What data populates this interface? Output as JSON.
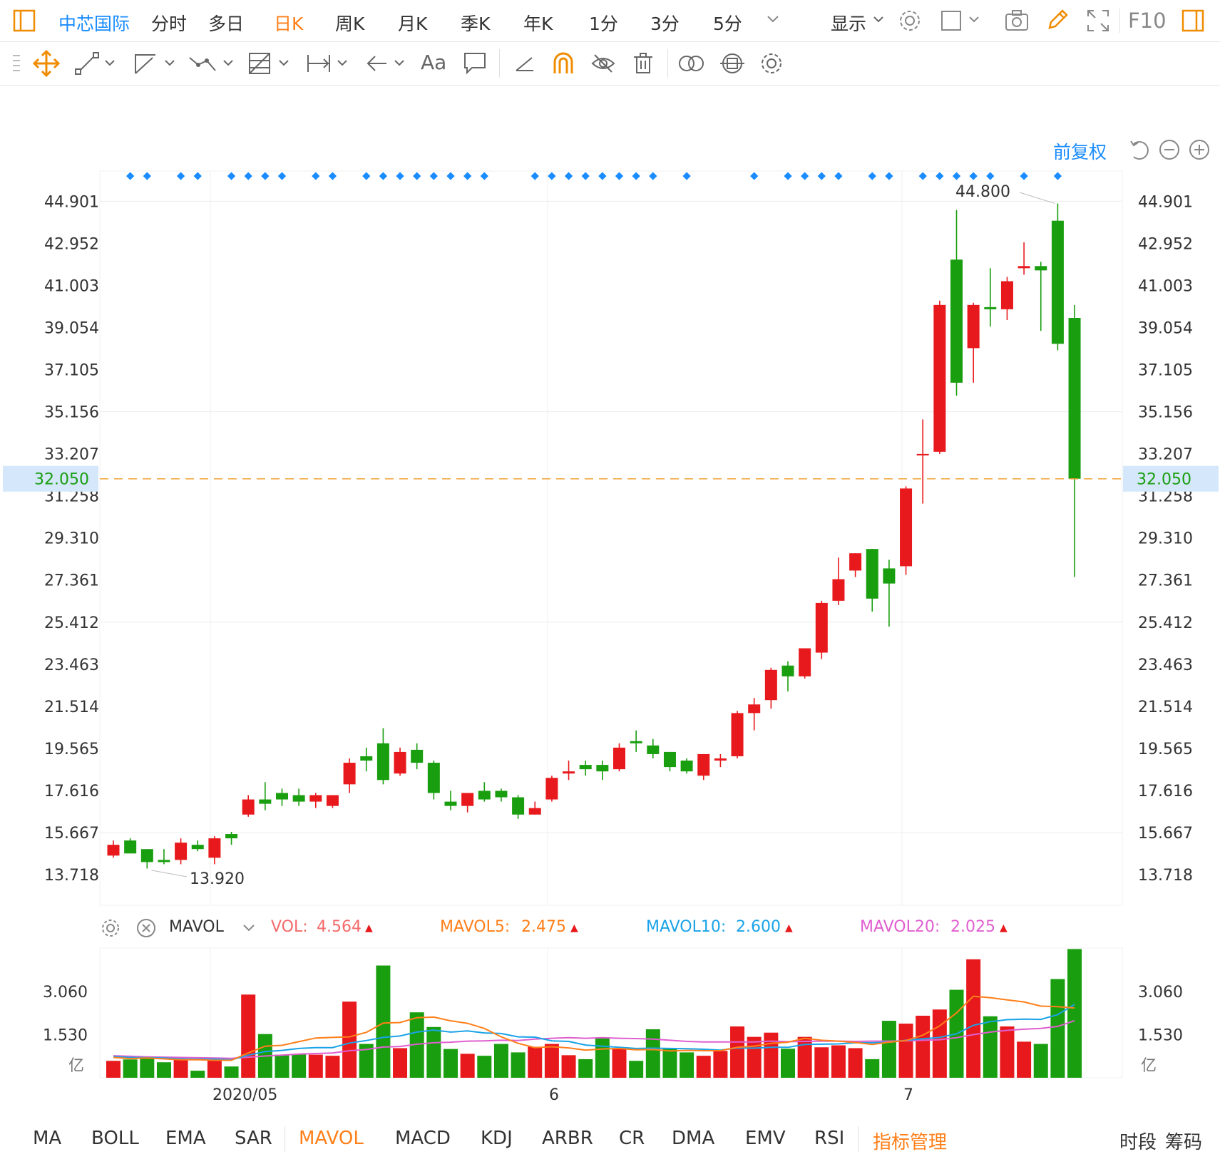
{
  "toolbar": {
    "stock_name": "中芯国际",
    "periods": [
      "分时",
      "多日",
      "日K",
      "周K",
      "月K",
      "季K",
      "年K",
      "1分",
      "3分",
      "5分"
    ],
    "active_period": "日K",
    "display_label": "显示",
    "f10_label": "F10"
  },
  "drawing_tools": {
    "text_tool_label": "Aa"
  },
  "chart_controls": {
    "adjust_label": "前复权"
  },
  "indicator_panel": {
    "name": "MAVOL",
    "vol_label": "VOL:",
    "vol_value": "4.564",
    "mavol5_label": "MAVOL5:",
    "mavol5_value": "2.475",
    "mavol10_label": "MAVOL10:",
    "mavol10_value": "2.600",
    "mavol20_label": "MAVOL20:",
    "mavol20_value": "2.025"
  },
  "bottom_tabs": {
    "indicators": [
      "MA",
      "BOLL",
      "EMA",
      "SAR",
      "MAVOL",
      "MACD",
      "KDJ",
      "ARBR",
      "CR",
      "DMA",
      "EMV",
      "RSI"
    ],
    "active": "MAVOL",
    "manage_label": "指标管理",
    "right_labels": [
      "时段",
      "筹码"
    ]
  },
  "colors": {
    "up": "#e8191c",
    "down": "#199e0f",
    "accent": "#1a8cff",
    "active_tab": "#ff7f1a",
    "mavol5": "#ff7f1a",
    "mavol10": "#1aa3e8",
    "mavol20": "#e05fd0",
    "vol": "#f46a6a",
    "current_price_line": "#f0a030"
  },
  "chart_data": [
    {
      "type": "candlestick",
      "y_ticks": [
        "44.901",
        "42.952",
        "41.003",
        "39.054",
        "37.105",
        "35.156",
        "33.207",
        "31.258",
        "29.310",
        "27.361",
        "25.412",
        "23.463",
        "21.514",
        "19.565",
        "17.616",
        "15.667",
        "13.718"
      ],
      "ylim": [
        12.3,
        46.3
      ],
      "x_tick_labels": [
        "2020/05",
        "6",
        "7"
      ],
      "x_tick_index": [
        6,
        26,
        47
      ],
      "current_price": "32.050",
      "max_label": "44.800",
      "min_label": "13.920",
      "signal_dot_index": [
        1,
        2,
        4,
        5,
        7,
        8,
        9,
        10,
        12,
        13,
        15,
        16,
        17,
        18,
        19,
        20,
        21,
        22,
        25,
        26,
        27,
        28,
        29,
        30,
        31,
        32,
        34,
        38,
        40,
        41,
        42,
        43,
        45,
        46,
        48,
        49,
        50,
        51,
        52,
        54,
        56
      ],
      "candles": [
        {
          "o": 14.6,
          "h": 15.3,
          "l": 14.5,
          "c": 15.1
        },
        {
          "o": 15.3,
          "h": 15.4,
          "l": 14.7,
          "c": 14.7
        },
        {
          "o": 14.9,
          "h": 14.9,
          "l": 14.0,
          "c": 14.3
        },
        {
          "o": 14.4,
          "h": 14.9,
          "l": 14.2,
          "c": 14.3
        },
        {
          "o": 14.4,
          "h": 15.4,
          "l": 14.2,
          "c": 15.2
        },
        {
          "o": 15.1,
          "h": 15.3,
          "l": 14.8,
          "c": 14.9
        },
        {
          "o": 14.5,
          "h": 15.5,
          "l": 14.2,
          "c": 15.4
        },
        {
          "o": 15.6,
          "h": 15.7,
          "l": 15.1,
          "c": 15.4
        },
        {
          "o": 16.5,
          "h": 17.4,
          "l": 16.4,
          "c": 17.2
        },
        {
          "o": 17.2,
          "h": 18.0,
          "l": 16.7,
          "c": 17.0
        },
        {
          "o": 17.5,
          "h": 17.7,
          "l": 16.9,
          "c": 17.2
        },
        {
          "o": 17.4,
          "h": 17.7,
          "l": 16.9,
          "c": 17.1
        },
        {
          "o": 17.1,
          "h": 17.5,
          "l": 16.8,
          "c": 17.4
        },
        {
          "o": 16.9,
          "h": 17.4,
          "l": 16.8,
          "c": 17.4
        },
        {
          "o": 17.9,
          "h": 19.1,
          "l": 17.5,
          "c": 18.9
        },
        {
          "o": 19.2,
          "h": 19.6,
          "l": 18.5,
          "c": 19.0
        },
        {
          "o": 19.8,
          "h": 20.5,
          "l": 17.9,
          "c": 18.1
        },
        {
          "o": 18.4,
          "h": 19.6,
          "l": 18.3,
          "c": 19.4
        },
        {
          "o": 19.5,
          "h": 19.8,
          "l": 18.6,
          "c": 18.9
        },
        {
          "o": 18.9,
          "h": 19.0,
          "l": 17.2,
          "c": 17.5
        },
        {
          "o": 17.1,
          "h": 17.6,
          "l": 16.7,
          "c": 16.9
        },
        {
          "o": 16.9,
          "h": 17.5,
          "l": 16.6,
          "c": 17.5
        },
        {
          "o": 17.6,
          "h": 18.0,
          "l": 17.1,
          "c": 17.2
        },
        {
          "o": 17.6,
          "h": 17.7,
          "l": 17.1,
          "c": 17.3
        },
        {
          "o": 17.3,
          "h": 17.4,
          "l": 16.3,
          "c": 16.5
        },
        {
          "o": 16.5,
          "h": 17.1,
          "l": 16.5,
          "c": 16.8
        },
        {
          "o": 17.2,
          "h": 18.3,
          "l": 17.1,
          "c": 18.2
        },
        {
          "o": 18.4,
          "h": 19.0,
          "l": 18.1,
          "c": 18.5
        },
        {
          "o": 18.8,
          "h": 19.0,
          "l": 18.3,
          "c": 18.6
        },
        {
          "o": 18.8,
          "h": 19.0,
          "l": 18.1,
          "c": 18.5
        },
        {
          "o": 18.6,
          "h": 19.8,
          "l": 18.5,
          "c": 19.6
        },
        {
          "o": 19.9,
          "h": 20.4,
          "l": 19.4,
          "c": 19.8
        },
        {
          "o": 19.7,
          "h": 20.0,
          "l": 19.1,
          "c": 19.3
        },
        {
          "o": 19.4,
          "h": 19.4,
          "l": 18.5,
          "c": 18.7
        },
        {
          "o": 19.0,
          "h": 19.1,
          "l": 18.4,
          "c": 18.5
        },
        {
          "o": 18.3,
          "h": 19.3,
          "l": 18.1,
          "c": 19.3
        },
        {
          "o": 19.0,
          "h": 19.3,
          "l": 18.7,
          "c": 19.1
        },
        {
          "o": 19.2,
          "h": 21.3,
          "l": 19.1,
          "c": 21.2
        },
        {
          "o": 21.2,
          "h": 21.9,
          "l": 20.4,
          "c": 21.6
        },
        {
          "o": 21.8,
          "h": 23.3,
          "l": 21.4,
          "c": 23.2
        },
        {
          "o": 23.4,
          "h": 23.6,
          "l": 22.2,
          "c": 22.9
        },
        {
          "o": 22.9,
          "h": 24.2,
          "l": 22.8,
          "c": 24.2
        },
        {
          "o": 24.0,
          "h": 26.4,
          "l": 23.7,
          "c": 26.3
        },
        {
          "o": 26.4,
          "h": 28.4,
          "l": 26.2,
          "c": 27.4
        },
        {
          "o": 27.8,
          "h": 28.6,
          "l": 27.5,
          "c": 28.6
        },
        {
          "o": 28.8,
          "h": 28.8,
          "l": 25.9,
          "c": 26.5
        },
        {
          "o": 27.9,
          "h": 28.3,
          "l": 25.2,
          "c": 27.2
        },
        {
          "o": 28.0,
          "h": 31.7,
          "l": 27.6,
          "c": 31.6
        },
        {
          "o": 33.2,
          "h": 34.8,
          "l": 30.9,
          "c": 33.2
        },
        {
          "o": 33.3,
          "h": 40.3,
          "l": 33.2,
          "c": 40.1
        },
        {
          "o": 42.2,
          "h": 44.5,
          "l": 35.9,
          "c": 36.5
        },
        {
          "o": 38.1,
          "h": 40.2,
          "l": 36.5,
          "c": 40.1
        },
        {
          "o": 40.0,
          "h": 41.8,
          "l": 39.1,
          "c": 39.9
        },
        {
          "o": 39.9,
          "h": 41.4,
          "l": 39.4,
          "c": 41.2
        },
        {
          "o": 41.8,
          "h": 43.0,
          "l": 41.5,
          "c": 41.9
        },
        {
          "o": 41.9,
          "h": 42.1,
          "l": 38.9,
          "c": 41.7
        },
        {
          "o": 44.0,
          "h": 44.8,
          "l": 38.0,
          "c": 38.3
        },
        {
          "o": 39.5,
          "h": 40.1,
          "l": 27.5,
          "c": 32.05
        }
      ]
    },
    {
      "type": "bar",
      "series_name": "MAVOL",
      "y_ticks": [
        "3.060",
        "1.530"
      ],
      "unit_label": "亿",
      "ylim": [
        0,
        4.6
      ],
      "volumes": [
        0.6,
        0.65,
        0.72,
        0.55,
        0.68,
        0.25,
        0.68,
        0.4,
        2.95,
        1.55,
        0.82,
        0.84,
        0.82,
        0.78,
        2.7,
        1.2,
        3.98,
        1.05,
        2.32,
        1.8,
        1.02,
        0.85,
        0.78,
        1.2,
        0.9,
        1.1,
        1.2,
        0.8,
        0.66,
        1.4,
        1.05,
        0.6,
        1.72,
        1.03,
        0.9,
        0.78,
        0.95,
        1.82,
        1.45,
        1.6,
        1.03,
        1.45,
        1.08,
        1.15,
        1.05,
        0.66,
        2.02,
        1.92,
        2.2,
        2.42,
        3.12,
        4.2,
        2.18,
        1.82,
        1.28,
        1.2,
        3.5,
        4.564
      ],
      "mavol5": [
        0.72,
        0.68,
        0.7,
        0.67,
        0.64,
        0.64,
        0.62,
        0.62,
        0.88,
        1.12,
        1.15,
        1.28,
        1.41,
        1.43,
        1.45,
        1.61,
        1.94,
        1.96,
        2.13,
        2.15,
        2.02,
        1.93,
        1.75,
        1.45,
        1.22,
        1.07,
        1.1,
        1.06,
        0.98,
        1.02,
        1.04,
        0.99,
        1.0,
        0.95,
        0.97,
        0.96,
        0.96,
        1.08,
        1.12,
        1.22,
        1.26,
        1.4,
        1.33,
        1.3,
        1.25,
        1.18,
        1.26,
        1.32,
        1.51,
        1.84,
        2.3,
        2.89,
        2.84,
        2.76,
        2.69,
        2.54,
        2.52,
        2.475
      ],
      "mavol10": [
        0.75,
        0.72,
        0.71,
        0.7,
        0.67,
        0.66,
        0.66,
        0.64,
        0.8,
        0.93,
        0.97,
        1.04,
        1.07,
        1.07,
        1.23,
        1.32,
        1.43,
        1.48,
        1.62,
        1.69,
        1.62,
        1.66,
        1.59,
        1.57,
        1.45,
        1.44,
        1.31,
        1.29,
        1.16,
        1.12,
        1.08,
        1.04,
        1.05,
        1.04,
        1.03,
        1.01,
        0.98,
        1.06,
        1.05,
        1.08,
        1.08,
        1.18,
        1.19,
        1.2,
        1.24,
        1.24,
        1.26,
        1.33,
        1.38,
        1.43,
        1.56,
        1.86,
        1.99,
        2.06,
        2.08,
        2.07,
        2.24,
        2.6
      ],
      "mavol20": [
        0.78,
        0.76,
        0.74,
        0.73,
        0.72,
        0.71,
        0.7,
        0.69,
        0.73,
        0.77,
        0.8,
        0.84,
        0.86,
        0.88,
        0.96,
        1.0,
        1.09,
        1.11,
        1.19,
        1.24,
        1.26,
        1.3,
        1.31,
        1.33,
        1.32,
        1.37,
        1.4,
        1.42,
        1.4,
        1.42,
        1.4,
        1.39,
        1.37,
        1.33,
        1.29,
        1.27,
        1.27,
        1.27,
        1.27,
        1.3,
        1.28,
        1.29,
        1.3,
        1.3,
        1.29,
        1.3,
        1.3,
        1.31,
        1.33,
        1.35,
        1.42,
        1.53,
        1.62,
        1.68,
        1.72,
        1.75,
        1.82,
        2.025
      ]
    }
  ]
}
